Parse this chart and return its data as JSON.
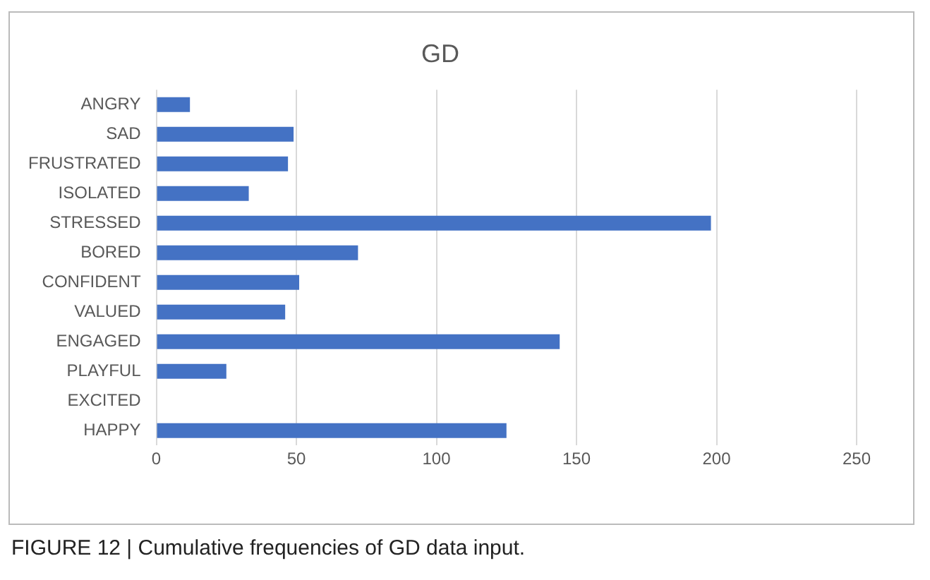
{
  "chart_data": {
    "type": "bar",
    "orientation": "horizontal",
    "title": "GD",
    "categories": [
      "ANGRY",
      "SAD",
      "FRUSTRATED",
      "ISOLATED",
      "STRESSED",
      "BORED",
      "CONFIDENT",
      "VALUED",
      "ENGAGED",
      "PLAYFUL",
      "EXCITED",
      "HAPPY"
    ],
    "values": [
      12,
      49,
      47,
      33,
      198,
      72,
      51,
      46,
      144,
      25,
      0,
      125
    ],
    "color": "#4472c4",
    "xlim": [
      0,
      250
    ],
    "xticks": [
      0,
      50,
      100,
      150,
      200,
      250
    ],
    "grid": "x",
    "annotations": [
      "FIGURE 12 | Cumulative frequencies of GD data input."
    ]
  }
}
